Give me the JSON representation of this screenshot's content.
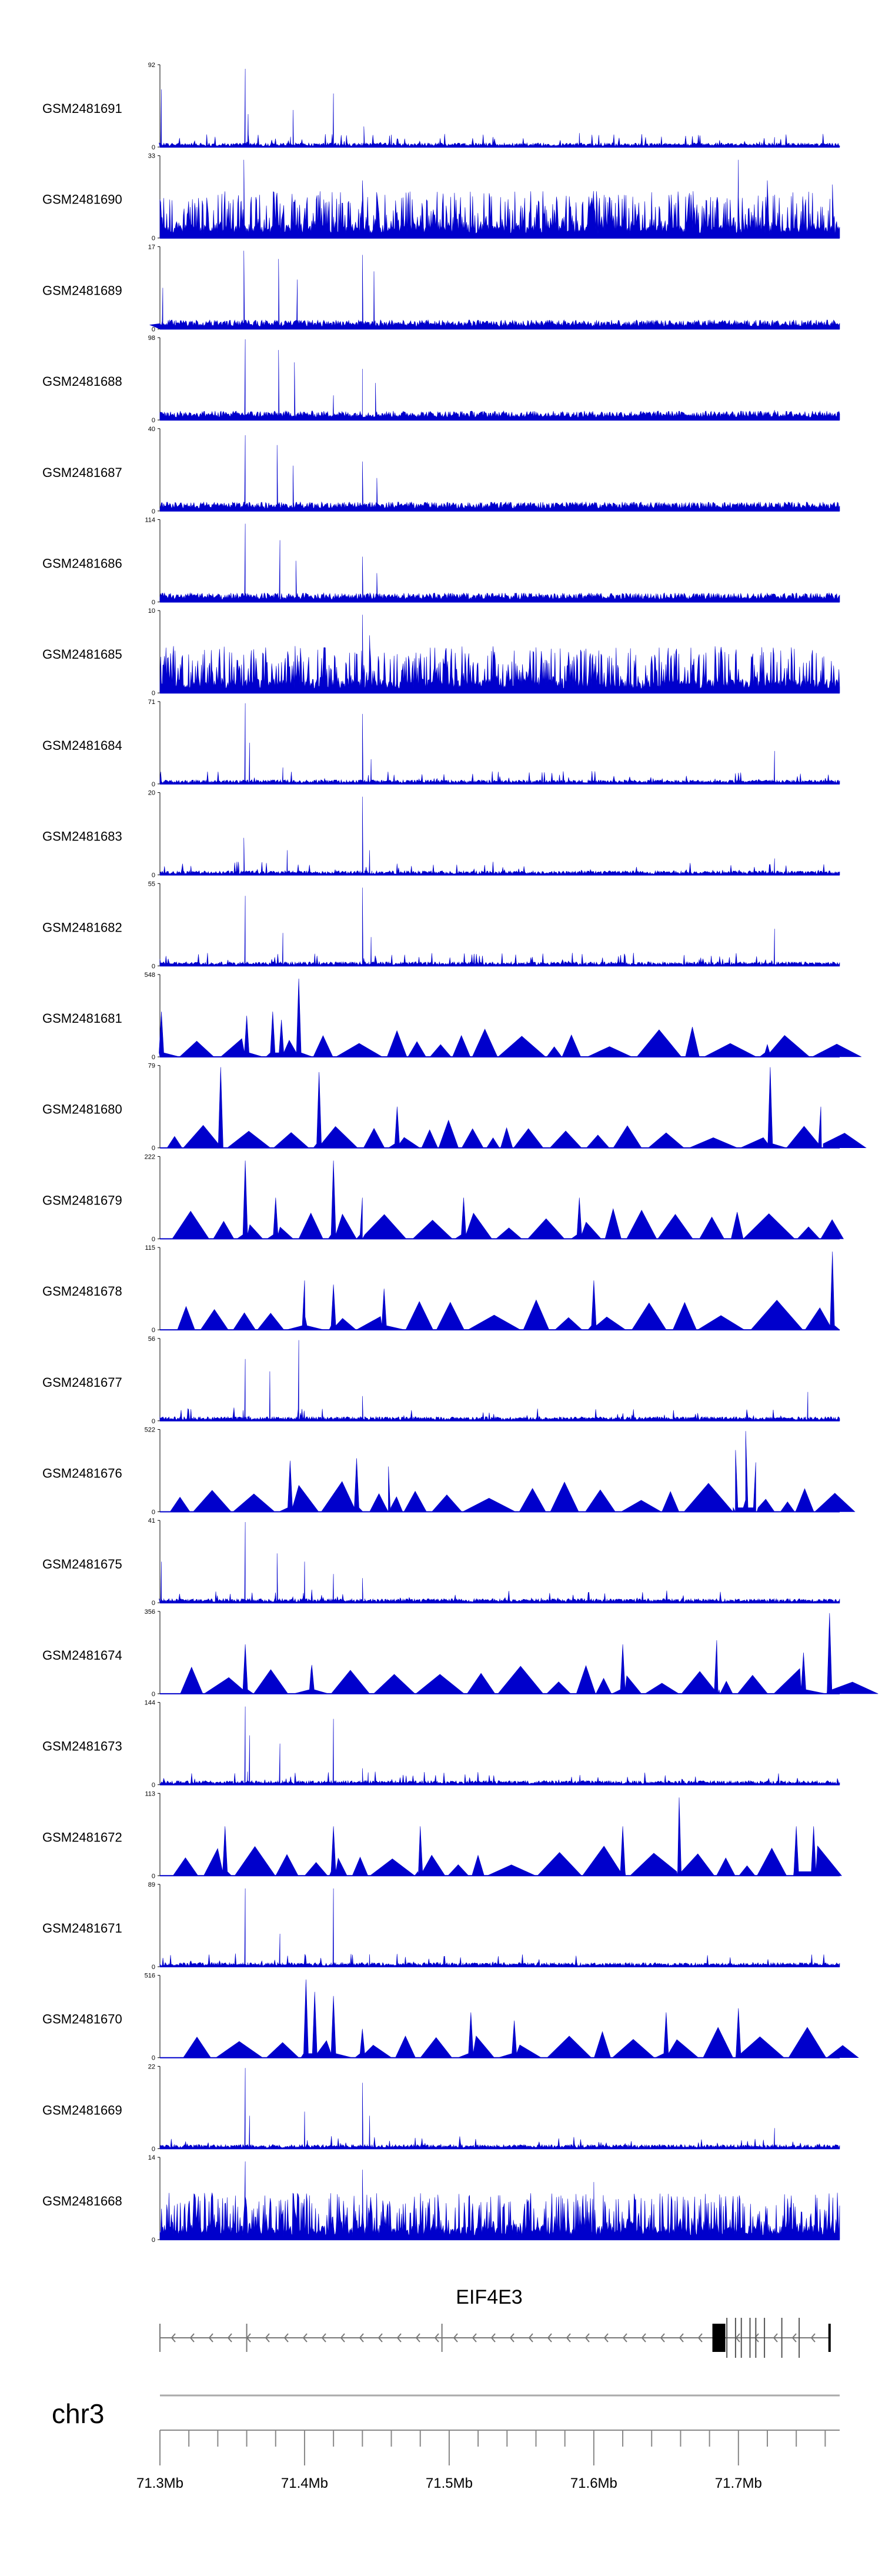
{
  "chart_data": {
    "type": "area",
    "title": "",
    "xlabel": "",
    "ylabel": "",
    "color": "#0000cc",
    "x_range_mb": [
      71.3,
      71.77
    ],
    "tracks": [
      {
        "name": "GSM2481691",
        "ymax": "92",
        "ymin": "0",
        "style": "sparse",
        "peaks": [
          [
            71.301,
            0.7
          ],
          [
            71.359,
            0.95
          ],
          [
            71.361,
            0.4
          ],
          [
            71.392,
            0.45
          ],
          [
            71.42,
            0.65
          ],
          [
            71.441,
            0.25
          ],
          [
            71.46,
            0.15
          ],
          [
            71.59,
            0.17
          ],
          [
            71.725,
            0.12
          ]
        ]
      },
      {
        "name": "GSM2481690",
        "ymax": "33",
        "ymin": "0",
        "style": "noisy",
        "peaks": [
          [
            71.358,
            0.95
          ],
          [
            71.44,
            0.7
          ],
          [
            71.7,
            0.95
          ],
          [
            71.72,
            0.7
          ],
          [
            71.765,
            0.65
          ]
        ]
      },
      {
        "name": "GSM2481689",
        "ymax": "17",
        "ymin": "0",
        "style": "broad",
        "peaks": [
          [
            71.302,
            0.5
          ],
          [
            71.358,
            0.95
          ],
          [
            71.382,
            0.85
          ],
          [
            71.395,
            0.6
          ],
          [
            71.44,
            0.9
          ],
          [
            71.448,
            0.7
          ]
        ]
      },
      {
        "name": "GSM2481688",
        "ymax": "98",
        "ymin": "0",
        "style": "broad",
        "peaks": [
          [
            71.359,
            0.98
          ],
          [
            71.382,
            0.85
          ],
          [
            71.393,
            0.7
          ],
          [
            71.42,
            0.3
          ],
          [
            71.44,
            0.62
          ],
          [
            71.449,
            0.45
          ],
          [
            71.59,
            0.08
          ],
          [
            71.725,
            0.12
          ]
        ]
      },
      {
        "name": "GSM2481687",
        "ymax": "40",
        "ymin": "0",
        "style": "broad",
        "peaks": [
          [
            71.359,
            0.92
          ],
          [
            71.381,
            0.8
          ],
          [
            71.392,
            0.55
          ],
          [
            71.44,
            0.6
          ],
          [
            71.45,
            0.4
          ]
        ]
      },
      {
        "name": "GSM2481686",
        "ymax": "114",
        "ymin": "0",
        "style": "broad",
        "peaks": [
          [
            71.359,
            0.95
          ],
          [
            71.383,
            0.75
          ],
          [
            71.394,
            0.5
          ],
          [
            71.44,
            0.55
          ],
          [
            71.45,
            0.35
          ],
          [
            71.59,
            0.1
          ]
        ]
      },
      {
        "name": "GSM2481685",
        "ymax": "10",
        "ymin": "0",
        "style": "noisy",
        "peaks": [
          [
            71.44,
            0.95
          ],
          [
            71.445,
            0.7
          ]
        ]
      },
      {
        "name": "GSM2481684",
        "ymax": "71",
        "ymin": "0",
        "style": "sparse",
        "peaks": [
          [
            71.359,
            0.98
          ],
          [
            71.362,
            0.5
          ],
          [
            71.385,
            0.2
          ],
          [
            71.44,
            0.85
          ],
          [
            71.446,
            0.3
          ],
          [
            71.725,
            0.4
          ]
        ]
      },
      {
        "name": "GSM2481683",
        "ymax": "20",
        "ymin": "0",
        "style": "sparse",
        "peaks": [
          [
            71.358,
            0.45
          ],
          [
            71.388,
            0.3
          ],
          [
            71.44,
            0.95
          ],
          [
            71.445,
            0.3
          ],
          [
            71.725,
            0.2
          ]
        ]
      },
      {
        "name": "GSM2481682",
        "ymax": "55",
        "ymin": "0",
        "style": "sparse",
        "peaks": [
          [
            71.359,
            0.85
          ],
          [
            71.385,
            0.4
          ],
          [
            71.44,
            0.95
          ],
          [
            71.446,
            0.35
          ],
          [
            71.725,
            0.45
          ]
        ]
      },
      {
        "name": "GSM2481681",
        "ymax": "548",
        "ymin": "0",
        "style": "triangles",
        "peaks": [
          [
            71.301,
            0.55
          ],
          [
            71.36,
            0.5
          ],
          [
            71.378,
            0.55
          ],
          [
            71.384,
            0.45
          ],
          [
            71.396,
            0.95
          ],
          [
            71.72,
            0.15
          ]
        ]
      },
      {
        "name": "GSM2481680",
        "ymax": "79",
        "ymin": "0",
        "style": "triangles",
        "peaks": [
          [
            71.342,
            0.98
          ],
          [
            71.41,
            0.92
          ],
          [
            71.464,
            0.5
          ],
          [
            71.722,
            0.98
          ],
          [
            71.757,
            0.5
          ]
        ]
      },
      {
        "name": "GSM2481679",
        "ymax": "222",
        "ymin": "0",
        "style": "triangles",
        "peaks": [
          [
            71.359,
            0.95
          ],
          [
            71.38,
            0.5
          ],
          [
            71.42,
            0.95
          ],
          [
            71.44,
            0.5
          ],
          [
            71.51,
            0.5
          ],
          [
            71.59,
            0.5
          ]
        ]
      },
      {
        "name": "GSM2481678",
        "ymax": "115",
        "ymin": "0",
        "style": "triangles",
        "peaks": [
          [
            71.4,
            0.6
          ],
          [
            71.42,
            0.55
          ],
          [
            71.455,
            0.5
          ],
          [
            71.6,
            0.6
          ],
          [
            71.765,
            0.95
          ]
        ]
      },
      {
        "name": "GSM2481677",
        "ymax": "56",
        "ymin": "0",
        "style": "sparse",
        "peaks": [
          [
            71.359,
            0.75
          ],
          [
            71.376,
            0.6
          ],
          [
            71.396,
            0.98
          ],
          [
            71.44,
            0.3
          ],
          [
            71.748,
            0.35
          ]
        ]
      },
      {
        "name": "GSM2481676",
        "ymax": "522",
        "ymin": "0",
        "style": "triangles",
        "peaks": [
          [
            71.39,
            0.62
          ],
          [
            71.436,
            0.65
          ],
          [
            71.458,
            0.55
          ],
          [
            71.698,
            0.75
          ],
          [
            71.705,
            0.98
          ],
          [
            71.712,
            0.6
          ]
        ]
      },
      {
        "name": "GSM2481675",
        "ymax": "41",
        "ymin": "0",
        "style": "sparse",
        "peaks": [
          [
            71.301,
            0.5
          ],
          [
            71.359,
            0.98
          ],
          [
            71.381,
            0.6
          ],
          [
            71.4,
            0.5
          ],
          [
            71.42,
            0.35
          ],
          [
            71.44,
            0.3
          ]
        ]
      },
      {
        "name": "GSM2481674",
        "ymax": "356",
        "ymin": "0",
        "style": "triangles",
        "peaks": [
          [
            71.359,
            0.6
          ],
          [
            71.405,
            0.35
          ],
          [
            71.62,
            0.6
          ],
          [
            71.685,
            0.65
          ],
          [
            71.745,
            0.5
          ],
          [
            71.763,
            0.98
          ]
        ]
      },
      {
        "name": "GSM2481673",
        "ymax": "144",
        "ymin": "0",
        "style": "sparse",
        "peaks": [
          [
            71.359,
            0.95
          ],
          [
            71.362,
            0.6
          ],
          [
            71.383,
            0.5
          ],
          [
            71.42,
            0.8
          ],
          [
            71.44,
            0.2
          ],
          [
            71.444,
            0.15
          ]
        ]
      },
      {
        "name": "GSM2481672",
        "ymax": "113",
        "ymin": "0",
        "style": "triangles",
        "peaks": [
          [
            71.345,
            0.6
          ],
          [
            71.42,
            0.6
          ],
          [
            71.48,
            0.6
          ],
          [
            71.62,
            0.6
          ],
          [
            71.659,
            0.95
          ],
          [
            71.74,
            0.6
          ],
          [
            71.752,
            0.6
          ]
        ]
      },
      {
        "name": "GSM2481671",
        "ymax": "89",
        "ymin": "0",
        "style": "sparse",
        "peaks": [
          [
            71.359,
            0.95
          ],
          [
            71.383,
            0.4
          ],
          [
            71.42,
            0.95
          ],
          [
            71.445,
            0.15
          ]
        ]
      },
      {
        "name": "GSM2481670",
        "ymax": "516",
        "ymin": "0",
        "style": "triangles",
        "peaks": [
          [
            71.401,
            0.95
          ],
          [
            71.407,
            0.8
          ],
          [
            71.42,
            0.75
          ],
          [
            71.44,
            0.35
          ],
          [
            71.515,
            0.55
          ],
          [
            71.545,
            0.45
          ],
          [
            71.65,
            0.55
          ],
          [
            71.7,
            0.6
          ]
        ]
      },
      {
        "name": "GSM2481669",
        "ymax": "22",
        "ymin": "0",
        "style": "sparse",
        "peaks": [
          [
            71.359,
            0.98
          ],
          [
            71.362,
            0.4
          ],
          [
            71.4,
            0.45
          ],
          [
            71.44,
            0.8
          ],
          [
            71.445,
            0.4
          ],
          [
            71.725,
            0.25
          ]
        ]
      },
      {
        "name": "GSM2481668",
        "ymax": "14",
        "ymin": "0",
        "style": "noisy",
        "peaks": [
          [
            71.359,
            0.95
          ],
          [
            71.44,
            0.85
          ],
          [
            71.6,
            0.7
          ]
        ]
      }
    ],
    "gene": {
      "name": "EIF4E3",
      "start_mb": 71.3,
      "end_mb": 71.763,
      "strand": "-"
    },
    "chromosome": "chr3",
    "x_ticks": [
      "71.3Mb",
      "71.4Mb",
      "71.5Mb",
      "71.6Mb",
      "71.7Mb"
    ],
    "x_tick_values": [
      71.3,
      71.4,
      71.5,
      71.6,
      71.7
    ]
  }
}
